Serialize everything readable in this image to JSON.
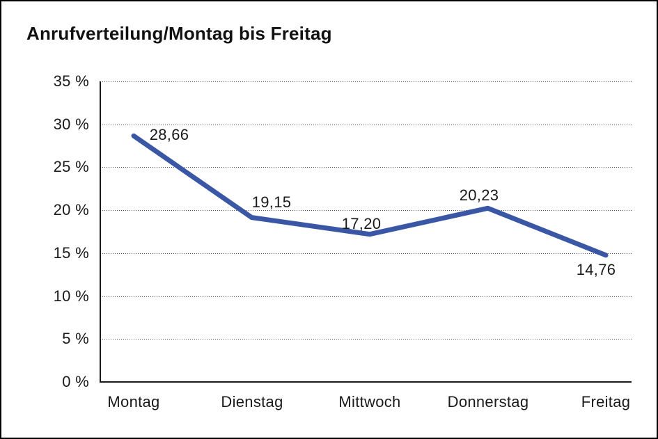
{
  "title": "Anrufverteilung/Montag bis Freitag",
  "chart_data": {
    "type": "line",
    "title": "Anrufverteilung/Montag bis Freitag",
    "categories": [
      "Montag",
      "Dienstag",
      "Mittwoch",
      "Donnerstag",
      "Freitag"
    ],
    "values": [
      28.66,
      19.15,
      17.2,
      20.23,
      14.76
    ],
    "value_labels": [
      "28,66",
      "19,15",
      "17,20",
      "20,23",
      "14,76"
    ],
    "ytick_labels": [
      "0 %",
      "5 %",
      "10 %",
      "15 %",
      "20 %",
      "25 %",
      "30 %",
      "35 %"
    ],
    "ytick_values": [
      0,
      5,
      10,
      15,
      20,
      25,
      30,
      35
    ],
    "ylim": [
      0,
      35
    ],
    "ytick_step": 5,
    "xlabel": "",
    "ylabel": "",
    "grid": "horizontal-dotted",
    "legend": "none",
    "line_color": "#3A57A5",
    "text_color": "#1a1a1a",
    "axis_color": "#1a1a1a"
  }
}
